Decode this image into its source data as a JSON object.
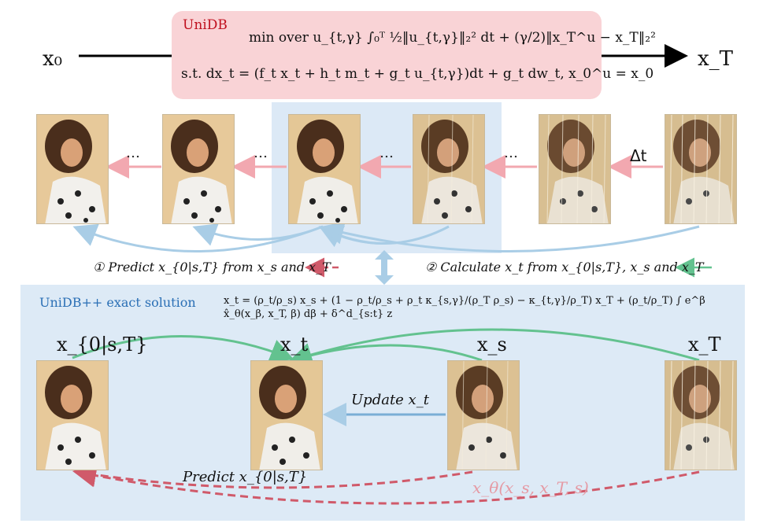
{
  "top": {
    "x_start": "x₀",
    "x_end": "x_T",
    "box_title": "UniDB",
    "objective": "min over u_{t,γ}  ∫₀ᵀ ½‖u_{t,γ}‖₂² dt + (γ/2)‖x_T^u − x_T‖₂²",
    "constraint": "s.t.   dx_t = (f_t x_t + h_t m_t + g_t u_{t,γ})dt + g_t dw_t,   x_0^u = x_0"
  },
  "sequence": {
    "ellipsis": "…",
    "delta_t": "Δt"
  },
  "steps": {
    "step1": "① Predict x_{0|s,T} from  x_s and  x_T",
    "step2": "② Calculate x_t from x_{0|s,T},  x_s and  x_T"
  },
  "bottom": {
    "title": "UniDB++ exact solution",
    "equation": "x_t = (ρ_t/ρ_s) x_s + (1 − ρ_t/ρ_s + ρ_t κ_{s,γ}/(ρ_T ρ_s) − κ_{t,γ}/ρ_T) x_T + (ρ_t/ρ_T) ∫ e^β x̂_θ(x_β, x_T, β) dβ + δ^d_{s:t} z",
    "label_x0": "x_{0|s,T}",
    "label_xt": "x_t",
    "label_xs": "x_s",
    "label_xT": "x_T",
    "update": "Update x_t",
    "predict": "Predict x_{0|s,T}",
    "xtheta": "x_θ(x_s, x_T, s)"
  },
  "colors": {
    "pink_box": "#f9d3d6",
    "blue_panel": "#ddeaf6",
    "unidb_red": "#c0111f",
    "unidbpp_blue": "#2a6fb5",
    "arrow_pink": "#f2a8b0",
    "arrow_blue": "#a9cde6",
    "arrow_green": "#63c28f",
    "arrow_dashed_red": "#d05a6a"
  }
}
